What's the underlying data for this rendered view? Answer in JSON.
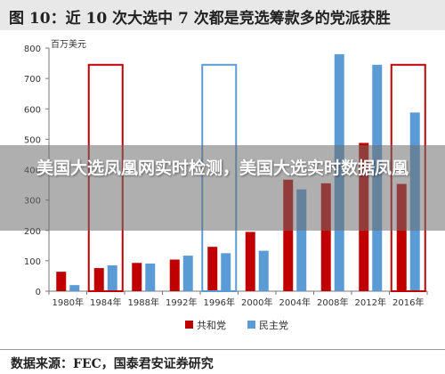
{
  "title": "图 10：近 10 次大选中 7 次都是竞选筹款多的党派获胜",
  "overlay_text": "美国大选凤凰网实时检测，美国大选实时数据凤凰",
  "source": "数据来源：FEC，国泰君安证券研究",
  "chart_data": {
    "type": "bar",
    "unit_label": "百万美元",
    "categories": [
      "1980年",
      "1984年",
      "1988年",
      "1992年",
      "1996年",
      "2000年",
      "2004年",
      "2008年",
      "2012年",
      "2016年"
    ],
    "series": [
      {
        "name": "共和党",
        "color": "#c00000",
        "values": [
          64,
          76,
          93,
          104,
          146,
          195,
          367,
          355,
          488,
          353
        ]
      },
      {
        "name": "民主党",
        "color": "#5b9bd5",
        "values": [
          20,
          85,
          91,
          117,
          125,
          133,
          335,
          780,
          745,
          588
        ]
      }
    ],
    "ylim": [
      0,
      800
    ],
    "yticks": [
      0,
      100,
      200,
      300,
      400,
      500,
      600,
      700,
      800
    ],
    "highlight_categories": [
      {
        "category": "1984年",
        "color": "#c00000"
      },
      {
        "category": "1996年",
        "color": "#5b9bd5"
      },
      {
        "category": "2016年",
        "color": "#c00000"
      }
    ],
    "legend_position": "bottom"
  }
}
